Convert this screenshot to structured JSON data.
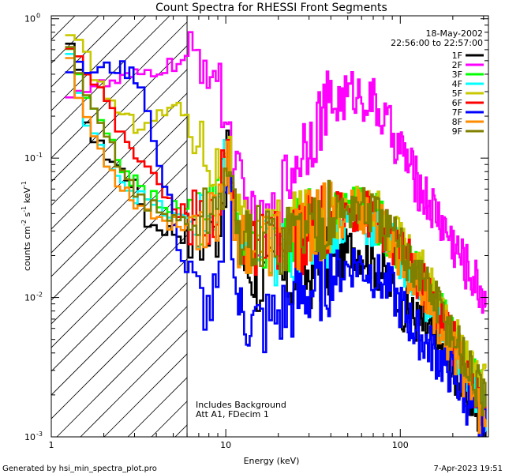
{
  "chart_data": {
    "type": "line",
    "title": "Count Spectra for RHESSI Front Segments",
    "xlabel": "Energy (keV)",
    "ylabel_parts": {
      "base": "counts cm",
      "exp1": "-2",
      "mid1": " s",
      "exp2": "-1",
      "mid2": " keV",
      "exp3": "-1"
    },
    "x_scale": "log",
    "y_scale": "log",
    "xlim": [
      1,
      320
    ],
    "ylim": [
      0.001,
      1.05
    ],
    "x_tick_labels": [
      {
        "value": 10,
        "label": "10"
      },
      {
        "value": 100,
        "label": "100"
      }
    ],
    "x_extra_label": {
      "value": 1,
      "label": "1"
    },
    "y_tick_labels": [
      {
        "value": 1,
        "label": "10",
        "exp": "0"
      },
      {
        "value": 0.1,
        "label": "10",
        "exp": "-1"
      },
      {
        "value": 0.01,
        "label": "10",
        "exp": "-2"
      },
      {
        "value": 0.001,
        "label": "10",
        "exp": "-3"
      }
    ],
    "date": "18-May-2002",
    "time_range": "22:56:00 to 22:57:00",
    "annotation_lines": [
      "Includes Background",
      "Att A1, FDecim 1"
    ],
    "hatched_region_xmax": 6.0,
    "series": [
      {
        "name": "1F",
        "color": "#000000",
        "knots": [
          [
            1.2,
            0.72
          ],
          [
            1.4,
            0.45
          ],
          [
            1.7,
            0.14
          ],
          [
            2.2,
            0.1
          ],
          [
            3,
            0.065
          ],
          [
            3.6,
            0.034
          ],
          [
            5,
            0.03
          ],
          [
            7,
            0.025
          ],
          [
            9,
            0.03
          ],
          [
            10.3,
            0.1
          ],
          [
            11.5,
            0.024
          ],
          [
            14,
            0.014
          ],
          [
            20,
            0.013
          ],
          [
            30,
            0.015
          ],
          [
            45,
            0.019
          ],
          [
            55,
            0.024
          ],
          [
            65,
            0.02
          ],
          [
            80,
            0.015
          ],
          [
            100,
            0.009
          ],
          [
            150,
            0.0055
          ],
          [
            200,
            0.003
          ],
          [
            300,
            0.0013
          ]
        ]
      },
      {
        "name": "2F",
        "color": "#ff00ff",
        "knots": [
          [
            1.2,
            0.3
          ],
          [
            2,
            0.33
          ],
          [
            3,
            0.38
          ],
          [
            4.5,
            0.45
          ],
          [
            6,
            0.5
          ],
          [
            7.5,
            0.52
          ],
          [
            8.5,
            0.45
          ],
          [
            10,
            0.2
          ],
          [
            11.5,
            0.08
          ],
          [
            13,
            0.045
          ],
          [
            16,
            0.027
          ],
          [
            19,
            0.036
          ],
          [
            22,
            0.065
          ],
          [
            27,
            0.12
          ],
          [
            35,
            0.2
          ],
          [
            45,
            0.26
          ],
          [
            55,
            0.3
          ],
          [
            70,
            0.25
          ],
          [
            100,
            0.12
          ],
          [
            130,
            0.06
          ],
          [
            170,
            0.036
          ],
          [
            230,
            0.018
          ],
          [
            280,
            0.012
          ],
          [
            310,
            0.01
          ]
        ]
      },
      {
        "name": "3F",
        "color": "#00ff00",
        "knots": [
          [
            1.2,
            0.9
          ],
          [
            1.4,
            0.38
          ],
          [
            1.8,
            0.2
          ],
          [
            2.4,
            0.1
          ],
          [
            3.2,
            0.06
          ],
          [
            5,
            0.044
          ],
          [
            7,
            0.038
          ],
          [
            9,
            0.045
          ],
          [
            10.3,
            0.12
          ],
          [
            11.5,
            0.03
          ],
          [
            14,
            0.024
          ],
          [
            20,
            0.025
          ],
          [
            30,
            0.032
          ],
          [
            40,
            0.036
          ],
          [
            55,
            0.045
          ],
          [
            70,
            0.04
          ],
          [
            100,
            0.022
          ],
          [
            150,
            0.011
          ],
          [
            200,
            0.005
          ],
          [
            300,
            0.0018
          ]
        ]
      },
      {
        "name": "4F",
        "color": "#00ffff",
        "knots": [
          [
            1.2,
            0.75
          ],
          [
            1.4,
            0.35
          ],
          [
            1.6,
            0.16
          ],
          [
            2.2,
            0.09
          ],
          [
            3,
            0.055
          ],
          [
            5,
            0.038
          ],
          [
            7,
            0.034
          ],
          [
            9,
            0.04
          ],
          [
            10.3,
            0.11
          ],
          [
            11.5,
            0.027
          ],
          [
            14,
            0.021
          ],
          [
            20,
            0.02
          ],
          [
            30,
            0.026
          ],
          [
            40,
            0.03
          ],
          [
            55,
            0.037
          ],
          [
            70,
            0.034
          ],
          [
            100,
            0.02
          ],
          [
            150,
            0.009
          ],
          [
            200,
            0.0045
          ],
          [
            300,
            0.0016
          ]
        ]
      },
      {
        "name": "5F",
        "color": "#c8c800",
        "knots": [
          [
            1.2,
            0.75
          ],
          [
            1.5,
            0.6
          ],
          [
            2,
            0.3
          ],
          [
            2.6,
            0.2
          ],
          [
            3.1,
            0.17
          ],
          [
            3.6,
            0.2
          ],
          [
            4.2,
            0.2
          ],
          [
            5,
            0.24
          ],
          [
            6,
            0.2
          ],
          [
            7,
            0.14
          ],
          [
            8,
            0.1
          ],
          [
            9.5,
            0.08
          ],
          [
            10.3,
            0.12
          ],
          [
            11.5,
            0.035
          ],
          [
            14,
            0.027
          ],
          [
            20,
            0.028
          ],
          [
            30,
            0.034
          ],
          [
            45,
            0.04
          ],
          [
            55,
            0.045
          ],
          [
            70,
            0.042
          ],
          [
            100,
            0.026
          ],
          [
            150,
            0.012
          ],
          [
            200,
            0.006
          ],
          [
            300,
            0.0022
          ]
        ]
      },
      {
        "name": "6F",
        "color": "#ff0000",
        "knots": [
          [
            1.2,
            0.8
          ],
          [
            1.5,
            0.5
          ],
          [
            2,
            0.28
          ],
          [
            2.5,
            0.15
          ],
          [
            3.3,
            0.1
          ],
          [
            4,
            0.065
          ],
          [
            5,
            0.045
          ],
          [
            7,
            0.036
          ],
          [
            9,
            0.045
          ],
          [
            10.3,
            0.12
          ],
          [
            11.5,
            0.03
          ],
          [
            14,
            0.022
          ],
          [
            20,
            0.022
          ],
          [
            30,
            0.03
          ],
          [
            40,
            0.036
          ],
          [
            55,
            0.044
          ],
          [
            70,
            0.038
          ],
          [
            100,
            0.022
          ],
          [
            150,
            0.01
          ],
          [
            200,
            0.005
          ],
          [
            300,
            0.0016
          ]
        ]
      },
      {
        "name": "7F",
        "color": "#0000ff",
        "knots": [
          [
            1.2,
            0.45
          ],
          [
            1.7,
            0.42
          ],
          [
            2.4,
            0.45
          ],
          [
            3,
            0.4
          ],
          [
            3.5,
            0.28
          ],
          [
            4,
            0.1
          ],
          [
            5,
            0.04
          ],
          [
            5.5,
            0.02
          ],
          [
            6.5,
            0.012
          ],
          [
            8,
            0.008
          ],
          [
            9.5,
            0.012
          ],
          [
            10.3,
            0.1
          ],
          [
            11.5,
            0.01
          ],
          [
            13,
            0.0065
          ],
          [
            17,
            0.0065
          ],
          [
            22,
            0.008
          ],
          [
            30,
            0.011
          ],
          [
            40,
            0.014
          ],
          [
            55,
            0.018
          ],
          [
            70,
            0.015
          ],
          [
            90,
            0.011
          ],
          [
            120,
            0.006
          ],
          [
            200,
            0.0028
          ],
          [
            300,
            0.0011
          ]
        ]
      },
      {
        "name": "8F",
        "color": "#ff8c00",
        "knots": [
          [
            1.2,
            0.78
          ],
          [
            1.4,
            0.3
          ],
          [
            1.8,
            0.13
          ],
          [
            2.4,
            0.07
          ],
          [
            3.2,
            0.045
          ],
          [
            5,
            0.033
          ],
          [
            7,
            0.036
          ],
          [
            9,
            0.04
          ],
          [
            10.3,
            0.11
          ],
          [
            11.5,
            0.028
          ],
          [
            14,
            0.022
          ],
          [
            20,
            0.025
          ],
          [
            30,
            0.032
          ],
          [
            40,
            0.036
          ],
          [
            55,
            0.044
          ],
          [
            70,
            0.038
          ],
          [
            100,
            0.02
          ],
          [
            150,
            0.009
          ],
          [
            200,
            0.0045
          ],
          [
            300,
            0.0013
          ]
        ]
      },
      {
        "name": "9F",
        "color": "#808000",
        "knots": [
          [
            1.2,
            0.78
          ],
          [
            1.5,
            0.3
          ],
          [
            2,
            0.16
          ],
          [
            2.6,
            0.08
          ],
          [
            3.3,
            0.05
          ],
          [
            5,
            0.036
          ],
          [
            7,
            0.036
          ],
          [
            9,
            0.044
          ],
          [
            10.3,
            0.1
          ],
          [
            11.5,
            0.03
          ],
          [
            14,
            0.025
          ],
          [
            20,
            0.026
          ],
          [
            30,
            0.033
          ],
          [
            40,
            0.037
          ],
          [
            55,
            0.046
          ],
          [
            70,
            0.04
          ],
          [
            100,
            0.023
          ],
          [
            150,
            0.011
          ],
          [
            200,
            0.0055
          ],
          [
            300,
            0.0018
          ]
        ]
      }
    ]
  },
  "footer": {
    "left": "Generated by hsi_min_spectra_plot.pro",
    "right": "7-Apr-2023 19:51"
  }
}
